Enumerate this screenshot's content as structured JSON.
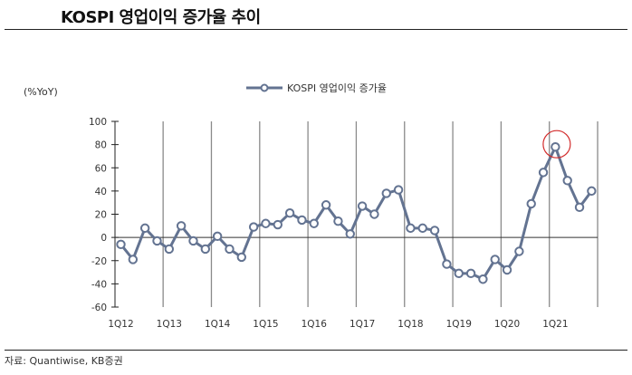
{
  "header": {
    "title": "KOSPI 영업이익 증가율 추이"
  },
  "footer": {
    "source": "자료: Quantiwise, KB증권"
  },
  "chart_data": {
    "type": "line",
    "title": "KOSPI 영업이익 증가율 추이",
    "ylabel": "(%YoY)",
    "xlabel": "",
    "ylim": [
      -60,
      100
    ],
    "yticks": [
      100,
      80,
      60,
      40,
      20,
      0,
      -20,
      -40,
      -60
    ],
    "ytick_labels": [
      "100",
      "80",
      "60",
      "40",
      "20",
      "0",
      "-20",
      "-40",
      "-60"
    ],
    "xtick_labels": [
      "1Q12",
      "1Q13",
      "1Q14",
      "1Q15",
      "1Q16",
      "1Q17",
      "1Q18",
      "1Q19",
      "1Q20",
      "1Q21"
    ],
    "grid": "vertical year separators",
    "legend": {
      "placement": "top-center",
      "entries": [
        "KOSPI 영업이익 증가율"
      ]
    },
    "series": [
      {
        "name": "KOSPI 영업이익 증가율",
        "color": "#637391",
        "x": [
          "1Q12",
          "2Q12",
          "3Q12",
          "4Q12",
          "1Q13",
          "2Q13",
          "3Q13",
          "4Q13",
          "1Q14",
          "2Q14",
          "3Q14",
          "4Q14",
          "1Q15",
          "2Q15",
          "3Q15",
          "4Q15",
          "1Q16",
          "2Q16",
          "3Q16",
          "4Q16",
          "1Q17",
          "2Q17",
          "3Q17",
          "4Q17",
          "1Q18",
          "2Q18",
          "3Q18",
          "4Q18",
          "1Q19",
          "2Q19",
          "3Q19",
          "4Q19",
          "1Q20",
          "2Q20",
          "3Q20",
          "4Q20",
          "1Q21",
          "2Q21",
          "3Q21",
          "4Q21"
        ],
        "values": [
          -6,
          -19,
          8,
          -3,
          -10,
          10,
          -3,
          -10,
          1,
          -10,
          -17,
          9,
          12,
          11,
          21,
          15,
          12,
          28,
          14,
          3,
          27,
          20,
          38,
          41,
          8,
          8,
          6,
          -23,
          -31,
          -31,
          -36,
          -19,
          -28,
          -12,
          29,
          56,
          78,
          49,
          26,
          40
        ]
      }
    ],
    "annotations": [
      {
        "type": "circle",
        "target": "1Q21",
        "color": "#d22b2b"
      }
    ]
  }
}
